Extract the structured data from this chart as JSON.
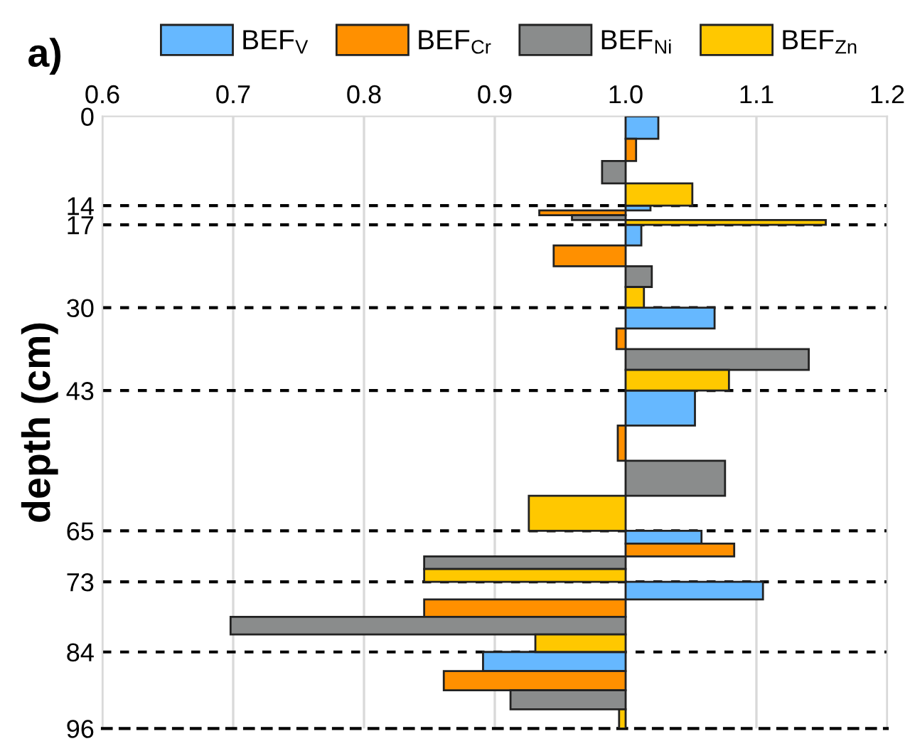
{
  "chart_data": {
    "type": "bar",
    "orientation": "horizontal",
    "title": "a)",
    "ylabel": "depth (cm)",
    "xlim": [
      0.6,
      1.2
    ],
    "xticks": [
      {
        "value": 0.6,
        "label": "0.6"
      },
      {
        "value": 0.7,
        "label": "0.7"
      },
      {
        "value": 0.8,
        "label": "0.8"
      },
      {
        "value": 0.9,
        "label": "0.9"
      },
      {
        "value": 1.0,
        "label": "1.0"
      },
      {
        "value": 1.1,
        "label": "1.1"
      },
      {
        "value": 1.2,
        "label": "1.2"
      }
    ],
    "ylim": [
      96,
      0
    ],
    "yticks": [
      0,
      14,
      17,
      30,
      43,
      65,
      73,
      84,
      96
    ],
    "grid": "x",
    "legend": "top",
    "ref_lines": [
      {
        "axis": "y",
        "value": 14,
        "color": "#000000",
        "line_style": "dashed"
      },
      {
        "axis": "y",
        "value": 17,
        "color": "#000000",
        "line_style": "dashed"
      },
      {
        "axis": "y",
        "value": 30,
        "color": "#000000",
        "line_style": "dashed"
      },
      {
        "axis": "y",
        "value": 43,
        "color": "#000000",
        "line_style": "dashed"
      },
      {
        "axis": "y",
        "value": 65,
        "color": "#000000",
        "line_style": "dashed"
      },
      {
        "axis": "y",
        "value": 73,
        "color": "#000000",
        "line_style": "dashed"
      },
      {
        "axis": "y",
        "value": 84,
        "color": "#000000",
        "line_style": "dashed"
      }
    ],
    "series": [
      {
        "name": "BEF$_{V}$",
        "color": "#66b8ff",
        "x": [
          1.75,
          14.375,
          18.625,
          31.625,
          45.75,
          66.0,
          74.375,
          85.5
        ],
        "base": [
          1,
          1,
          1,
          1,
          1,
          1,
          1,
          1
        ],
        "values": [
          0.025,
          0.019,
          0.012,
          0.068,
          0.053,
          0.058,
          0.105,
          -0.109
        ]
      },
      {
        "name": "BEF$_{Cr}$",
        "color": "#ff9000",
        "x": [
          5.25,
          15.125,
          21.875,
          34.875,
          51.25,
          68.0,
          77.125,
          88.5
        ],
        "base": [
          1,
          1,
          1,
          1,
          1,
          1,
          1,
          1
        ],
        "values": [
          0.008,
          -0.066,
          -0.055,
          -0.007,
          -0.006,
          0.083,
          -0.154,
          -0.139
        ]
      },
      {
        "name": "BEF$_{Ni}$",
        "color": "#8a8c8c",
        "x": [
          8.75,
          15.875,
          25.125,
          38.125,
          56.75,
          70.0,
          79.875,
          91.5
        ],
        "base": [
          1,
          1,
          1,
          1,
          1,
          1,
          1,
          1
        ],
        "values": [
          -0.018,
          -0.041,
          0.02,
          0.14,
          0.076,
          -0.154,
          -0.302,
          -0.088
        ]
      },
      {
        "name": "BEF$_{Zn}$",
        "color": "#ffc800",
        "x": [
          12.25,
          16.625,
          28.375,
          41.375,
          62.25,
          72.0,
          82.625,
          94.5
        ],
        "base": [
          1,
          1,
          1,
          1,
          1,
          1,
          1,
          1
        ],
        "values": [
          0.051,
          0.153,
          0.014,
          0.079,
          -0.074,
          -0.154,
          -0.069,
          -0.005
        ]
      }
    ]
  }
}
